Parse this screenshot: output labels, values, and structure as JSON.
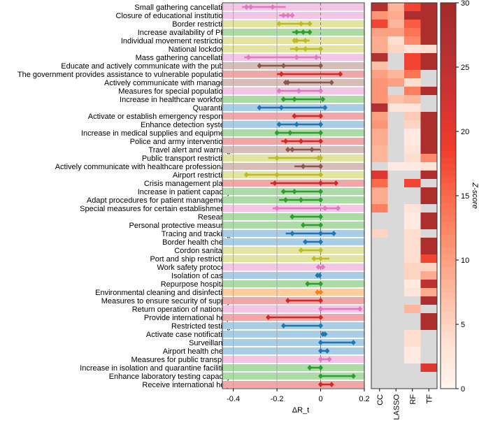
{
  "chart_data": [
    {
      "type": "dot-range",
      "xlabel": "ΔR_t",
      "xlim": [
        -0.45,
        0.2
      ],
      "xticks": [
        "-0.4",
        "-0.2",
        "0",
        "0.2"
      ],
      "xtick_values": [
        -0.4,
        -0.2,
        0,
        0.2
      ],
      "gridlines": [
        -0.4,
        -0.2
      ],
      "reference_line": 0,
      "colors": {
        "pink": {
          "mark": "#e377c2",
          "band": "#f5c5e6"
        },
        "olive": {
          "mark": "#bcbd22",
          "band": "#e3e4a2"
        },
        "green": {
          "mark": "#2ca02c",
          "band": "#abdca5"
        },
        "red": {
          "mark": "#d62728",
          "band": "#f1a7a7"
        },
        "brown": {
          "mark": "#8c564b",
          "band": "#d6bdb8"
        },
        "blue": {
          "mark": "#1f77b4",
          "band": "#a9cde6"
        },
        "orange": {
          "mark": "#ff7f0e",
          "band": "#ffcc9a"
        }
      },
      "rows": [
        {
          "label": "Small gathering cancellation",
          "color": "pink",
          "lo": -0.36,
          "hi": -0.16,
          "points": [
            -0.34,
            -0.32,
            -0.22
          ]
        },
        {
          "label": "Closure of educational institutions",
          "color": "pink",
          "lo": -0.19,
          "hi": -0.13,
          "points": [
            -0.17,
            -0.15,
            -0.13
          ]
        },
        {
          "label": "Border restriction",
          "color": "olive",
          "lo": -0.2,
          "hi": -0.04,
          "points": [
            -0.19,
            -0.09,
            -0.05
          ]
        },
        {
          "label": "Increase availability of PPE",
          "color": "green",
          "lo": -0.13,
          "hi": -0.05,
          "points": [
            -0.11,
            -0.08,
            -0.05
          ]
        },
        {
          "label": "Individual movement restrictions",
          "color": "olive",
          "lo": -0.13,
          "hi": -0.05,
          "points": [
            -0.12,
            -0.11,
            -0.07
          ]
        },
        {
          "label": "National lockdown",
          "color": "olive",
          "lo": -0.14,
          "hi": 0.0,
          "points": [
            -0.11,
            -0.07,
            0.0
          ]
        },
        {
          "label": "Mass gathering cancellation",
          "color": "pink",
          "lo": -0.35,
          "hi": 0.0,
          "points": [
            -0.33,
            -0.11,
            -0.02
          ]
        },
        {
          "label": "Educate and actively communicate with the public",
          "color": "brown",
          "lo": -0.28,
          "hi": 0.0,
          "points": [
            -0.28,
            -0.17,
            0.0
          ]
        },
        {
          "label": "The government provides assistance to vulnerable populations",
          "color": "red",
          "lo": -0.2,
          "hi": 0.09,
          "points": [
            -0.18,
            0.09
          ]
        },
        {
          "label": "Actively communicate with managers",
          "color": "brown",
          "lo": -0.17,
          "hi": 0.05,
          "points": [
            -0.16,
            -0.15,
            0.05
          ]
        },
        {
          "label": "Measures for special populations",
          "color": "pink",
          "lo": -0.2,
          "hi": 0.0,
          "points": [
            -0.19,
            -0.1,
            0.0
          ]
        },
        {
          "label": "Increase in healthcare workforce",
          "color": "green",
          "lo": -0.18,
          "hi": 0.01,
          "points": [
            -0.17,
            -0.12,
            0.01
          ]
        },
        {
          "label": "Quarantine",
          "color": "blue",
          "lo": -0.29,
          "hi": 0.02,
          "points": [
            -0.28,
            -0.18,
            0.02
          ]
        },
        {
          "label": "Activate or establish emergency response",
          "color": "red",
          "lo": -0.13,
          "hi": 0.0,
          "points": [
            -0.12,
            0.0
          ]
        },
        {
          "label": "Enhance detection system",
          "color": "blue",
          "lo": -0.2,
          "hi": 0.0,
          "points": [
            -0.19,
            -0.11,
            0.0
          ]
        },
        {
          "label": "Increase in medical supplies and equipment",
          "color": "green",
          "lo": -0.2,
          "hi": 0.0,
          "points": [
            -0.2,
            -0.14,
            0.0
          ]
        },
        {
          "label": "Police and army interventions",
          "color": "red",
          "lo": -0.18,
          "hi": 0.0,
          "points": [
            -0.16,
            -0.09,
            0.0
          ]
        },
        {
          "label": "Travel alert and warning",
          "color": "brown",
          "lo": -0.16,
          "hi": 0.0,
          "points": [
            -0.15,
            -0.13,
            -0.04
          ]
        },
        {
          "label": "Public transport restriction",
          "color": "olive",
          "lo": -0.24,
          "hi": 0.0,
          "points": [
            -0.2,
            -0.01,
            0.0
          ]
        },
        {
          "label": "Actively communicate with healthcare professionals",
          "color": "brown",
          "lo": -0.12,
          "hi": 0.0,
          "points": [
            -0.08,
            0.0
          ]
        },
        {
          "label": "Airport restriction",
          "color": "olive",
          "lo": -0.34,
          "hi": 0.0,
          "points": [
            -0.34,
            -0.2,
            0.0
          ]
        },
        {
          "label": "Crisis management plans",
          "color": "red",
          "lo": -0.23,
          "hi": 0.07,
          "points": [
            -0.21,
            0.0,
            0.07
          ]
        },
        {
          "label": "Increase in patient capacity",
          "color": "green",
          "lo": -0.18,
          "hi": 0.0,
          "points": [
            -0.17,
            -0.12,
            0.0
          ]
        },
        {
          "label": "Adapt procedures for patient management",
          "color": "green",
          "lo": -0.19,
          "hi": 0.0,
          "points": [
            -0.16,
            -0.09,
            0.0
          ]
        },
        {
          "label": "Special measures for certain establishments",
          "color": "pink",
          "lo": -0.22,
          "hi": 0.08,
          "points": [
            -0.2,
            0.02,
            0.08
          ]
        },
        {
          "label": "Research",
          "color": "green",
          "lo": -0.14,
          "hi": 0.0,
          "points": [
            -0.13,
            0.0
          ]
        },
        {
          "label": "Personal protective measures",
          "color": "green",
          "lo": -0.08,
          "hi": 0.0,
          "points": [
            -0.08,
            0.0
          ]
        },
        {
          "label": "Tracing and tracking",
          "color": "blue",
          "lo": -0.16,
          "hi": 0.06,
          "points": [
            -0.13,
            0.0,
            0.06
          ]
        },
        {
          "label": "Border health check",
          "color": "blue",
          "lo": -0.08,
          "hi": 0.0,
          "points": [
            -0.07,
            0.0
          ]
        },
        {
          "label": "Cordon sanitaire",
          "color": "olive",
          "lo": -0.09,
          "hi": 0.0,
          "points": [
            -0.09,
            0.0
          ]
        },
        {
          "label": "Port and ship restriction",
          "color": "olive",
          "lo": -0.04,
          "hi": 0.04,
          "points": [
            -0.03,
            0.0
          ]
        },
        {
          "label": "Work safety protocols",
          "color": "pink",
          "lo": -0.02,
          "hi": 0.02,
          "points": [
            -0.01,
            0.01
          ]
        },
        {
          "label": "Isolation of cases",
          "color": "blue",
          "lo": -0.02,
          "hi": 0.0,
          "points": [
            -0.015,
            -0.005
          ]
        },
        {
          "label": "Repurpose hospitals",
          "color": "green",
          "lo": -0.06,
          "hi": 0.0,
          "points": [
            -0.06,
            0.0
          ]
        },
        {
          "label": "Environmental cleaning and disinfection",
          "color": "orange",
          "lo": -0.02,
          "hi": 0.0,
          "points": [
            -0.015,
            0.0
          ]
        },
        {
          "label": "Measures to ensure security of supply",
          "color": "red",
          "lo": -0.15,
          "hi": 0.0,
          "points": [
            -0.15,
            0.0
          ]
        },
        {
          "label": "Return operation of nationals",
          "color": "pink",
          "lo": 0.0,
          "hi": 0.18,
          "points": [
            0.0,
            0.18
          ]
        },
        {
          "label": "Provide international help",
          "color": "red",
          "lo": -0.24,
          "hi": 0.0,
          "points": [
            -0.24,
            0.0
          ]
        },
        {
          "label": "Restricted testing",
          "color": "blue",
          "lo": -0.17,
          "hi": 0.0,
          "points": [
            -0.17,
            0.0
          ]
        },
        {
          "label": "Activate case notification",
          "color": "blue",
          "lo": 0.0,
          "hi": 0.03,
          "points": [
            0.01,
            0.02
          ]
        },
        {
          "label": "Surveillance",
          "color": "blue",
          "lo": 0.0,
          "hi": 0.15,
          "points": [
            0.0,
            0.15
          ]
        },
        {
          "label": "Airport health check",
          "color": "blue",
          "lo": 0.0,
          "hi": 0.03,
          "points": [
            0.0,
            0.03
          ]
        },
        {
          "label": "Measures for public transport",
          "color": "pink",
          "lo": 0.0,
          "hi": 0.04,
          "points": [
            0.0,
            0.04
          ]
        },
        {
          "label": "Increase in isolation and quarantine facilities",
          "color": "green",
          "lo": -0.05,
          "hi": 0.0,
          "points": [
            -0.05,
            0.0
          ]
        },
        {
          "label": "Enhance laboratory testing capacity",
          "color": "green",
          "lo": 0.0,
          "hi": 0.15,
          "points": [
            0.0,
            0.15
          ]
        },
        {
          "label": "Receive international help",
          "color": "red",
          "lo": 0.0,
          "hi": 0.05,
          "points": [
            0.0,
            0.05
          ]
        }
      ]
    },
    {
      "type": "heatmap",
      "columns": [
        "CC",
        "LASSO",
        "RF",
        "TF"
      ],
      "missing_color": "#d9d9d9",
      "colorbar": {
        "label": "Z-score",
        "range": [
          0,
          30
        ],
        "ticks": [
          "0",
          "5",
          "10",
          "15",
          "20",
          "25",
          "30"
        ],
        "colormap": "Reds"
      },
      "values": [
        [
          27,
          8,
          18,
          28
        ],
        [
          11,
          9,
          28,
          28
        ],
        [
          18,
          8,
          16,
          28
        ],
        [
          10,
          10,
          14,
          28
        ],
        [
          9,
          4,
          12,
          28
        ],
        [
          9,
          5,
          3,
          4
        ],
        [
          27,
          null,
          18,
          28
        ],
        [
          7,
          null,
          18,
          28
        ],
        [
          10,
          8,
          14,
          null
        ],
        [
          11,
          10,
          4,
          null
        ],
        [
          11,
          null,
          13,
          28
        ],
        [
          11,
          7,
          8,
          null
        ],
        [
          27,
          3,
          3,
          null
        ],
        [
          10,
          null,
          6,
          28
        ],
        [
          11,
          null,
          5,
          28
        ],
        [
          9,
          null,
          2,
          28
        ],
        [
          9,
          null,
          2,
          28
        ],
        [
          8,
          null,
          3,
          28
        ],
        [
          8,
          null,
          4,
          12
        ],
        [
          null,
          2,
          2,
          3
        ],
        [
          21,
          null,
          null,
          28
        ],
        [
          15,
          null,
          18,
          null
        ],
        [
          9,
          null,
          null,
          28
        ],
        [
          9,
          null,
          null,
          28
        ],
        [
          13,
          null,
          3,
          null
        ],
        [
          null,
          null,
          2,
          28
        ],
        [
          null,
          null,
          2,
          28
        ],
        [
          5,
          null,
          4,
          null
        ],
        [
          null,
          null,
          4,
          28
        ],
        [
          null,
          null,
          4,
          28
        ],
        [
          null,
          null,
          4,
          18
        ],
        [
          null,
          null,
          5,
          5
        ],
        [
          null,
          null,
          5,
          9
        ],
        [
          null,
          null,
          2,
          25
        ],
        [
          null,
          null,
          3,
          9
        ],
        [
          null,
          null,
          null,
          28
        ],
        [
          null,
          null,
          8,
          null
        ],
        [
          null,
          null,
          null,
          28
        ],
        [
          null,
          null,
          null,
          28
        ],
        [
          null,
          null,
          4,
          null
        ],
        [
          null,
          null,
          4,
          null
        ],
        [
          null,
          null,
          2,
          null
        ],
        [
          null,
          null,
          2,
          null
        ],
        [
          null,
          null,
          null,
          21
        ],
        [
          null,
          null,
          null,
          null
        ],
        [
          null,
          null,
          null,
          null
        ]
      ]
    }
  ]
}
